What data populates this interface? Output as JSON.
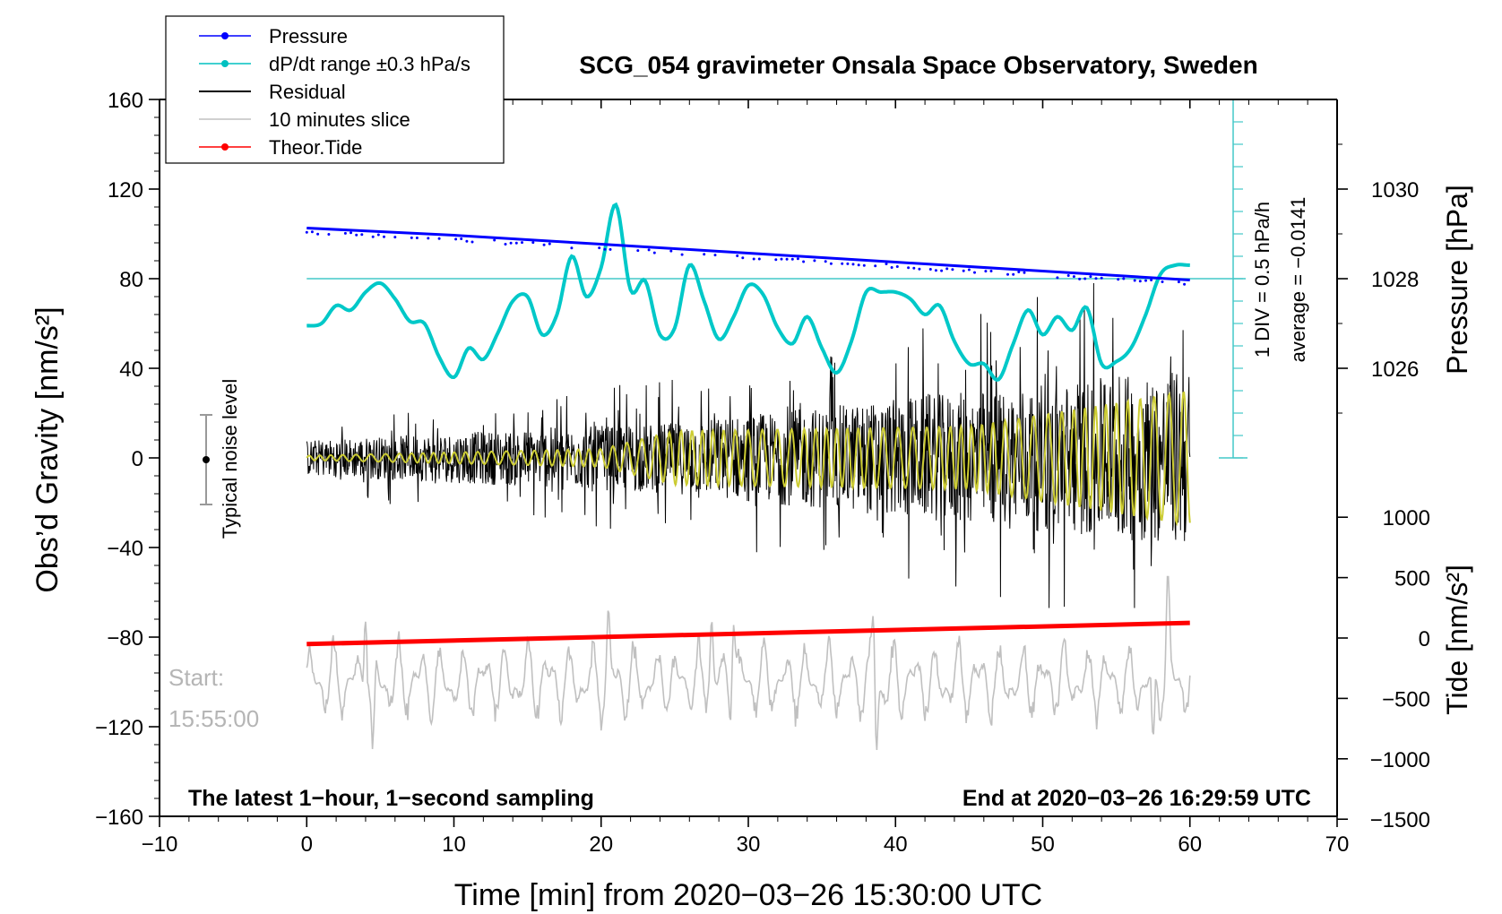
{
  "chart_data": {
    "type": "line",
    "title": "SCG_054 gravimeter Onsala Space Observatory, Sweden",
    "xlabel": "Time [min] from 2020−03−26 15:30:00 UTC",
    "ylabel_left": "Obs’d Gravity [nm/s²]",
    "ylabel_right_top": "Pressure [hPa]",
    "ylabel_right_bottom": "Tide [nm/s²]",
    "xlim": [
      -10,
      70
    ],
    "ylim": [
      -160,
      160
    ],
    "x_ticks": [
      -10,
      0,
      10,
      20,
      30,
      40,
      50,
      60,
      70
    ],
    "x_tick_labels": [
      "−10",
      "0",
      "10",
      "20",
      "30",
      "40",
      "50",
      "60",
      "70"
    ],
    "y_ticks": [
      160,
      120,
      80,
      40,
      0,
      -40,
      -80,
      -120,
      -160
    ],
    "y_tick_labels": [
      "160",
      "120",
      "80",
      "40",
      "0",
      "−40",
      "−80",
      "−120",
      "−160"
    ],
    "pressure_ticks": [
      1030,
      1028,
      1026
    ],
    "tide_ticks": [
      1000,
      500,
      0,
      -500,
      -1000,
      -1500
    ],
    "tide_tick_labels": [
      "1000",
      "500",
      "0",
      "−500",
      "−1000",
      "−1500"
    ],
    "legend": {
      "position": "top-left",
      "entries": [
        {
          "label": "Pressure",
          "color": "#0000ff",
          "marker": "dot"
        },
        {
          "label": "dP/dt range ±0.3 hPa/s",
          "color": "#00c0c0",
          "marker": "dot"
        },
        {
          "label": "Residual",
          "color": "#000000",
          "marker": "none"
        },
        {
          "label": "10 minutes slice",
          "color": "#c0c0c0",
          "marker": "none"
        },
        {
          "label": "Theor.Tide",
          "color": "#ff0000",
          "marker": "dot"
        }
      ]
    },
    "annotations": {
      "bottom_left": "The latest 1−hour, 1−second sampling",
      "bottom_right": "End at 2020−03−26 16:29:59 UTC",
      "start_label": "Start:",
      "start_time": "15:55:00",
      "noise_label": "Typical noise level",
      "div_label": "1 DIV = 0.5 hPa/h",
      "average_label": "average = −0.0141"
    },
    "series": [
      {
        "name": "Pressure",
        "color": "#0000ff",
        "unit": "hPa",
        "x": [
          0,
          10,
          20,
          30,
          40,
          50,
          60
        ],
        "values": [
          1029.13,
          1028.97,
          1028.77,
          1028.57,
          1028.37,
          1028.17,
          1027.97
        ]
      },
      {
        "name": "dP/dt",
        "color": "#00c8c8",
        "x": [
          0,
          1,
          2,
          3,
          4,
          5,
          6,
          7,
          8,
          9,
          10,
          11,
          12,
          13,
          14,
          15,
          16,
          17,
          18,
          19,
          20,
          21,
          22,
          23,
          24,
          25,
          26,
          27,
          28,
          29,
          30,
          31,
          32,
          33,
          34,
          35,
          36,
          37,
          38,
          39,
          40,
          41,
          42,
          43,
          44,
          45,
          46,
          47,
          48,
          49,
          50,
          51,
          52,
          53,
          54,
          55,
          56,
          57,
          58,
          59,
          60
        ],
        "values": [
          59,
          60,
          68,
          66,
          74,
          78,
          71,
          61,
          60,
          45,
          36,
          49,
          44,
          56,
          70,
          72,
          55,
          64,
          90,
          72,
          85,
          113,
          75,
          79,
          55,
          58,
          86,
          70,
          53,
          63,
          77,
          73,
          58,
          51,
          63,
          49,
          38,
          52,
          74,
          74,
          74,
          71,
          64,
          68,
          52,
          42,
          42,
          35,
          51,
          66,
          55,
          63,
          57,
          67,
          42,
          43,
          49,
          64,
          82,
          86,
          86
        ]
      },
      {
        "name": "Residual",
        "color": "#000000",
        "x": [
          0,
          25,
          60
        ],
        "amplitude": [
          8,
          16,
          40
        ],
        "extremes": {
          "max": 78,
          "min": -67
        }
      },
      {
        "name": "Residual filtered",
        "color": "#cccc33",
        "x": [
          0,
          20,
          25,
          45,
          60
        ],
        "amplitude": [
          1,
          4,
          12,
          14,
          30
        ]
      },
      {
        "name": "10 minutes slice",
        "color": "#c0c0c0",
        "x_start": 0,
        "x_end": 60,
        "amplitude": 30,
        "center": -100,
        "extremes": {
          "max": -53,
          "min": -140
        }
      },
      {
        "name": "Theor.Tide",
        "color": "#ff0000",
        "unit": "nm/s²",
        "x": [
          0,
          60
        ],
        "values": [
          -50,
          125
        ]
      }
    ]
  }
}
